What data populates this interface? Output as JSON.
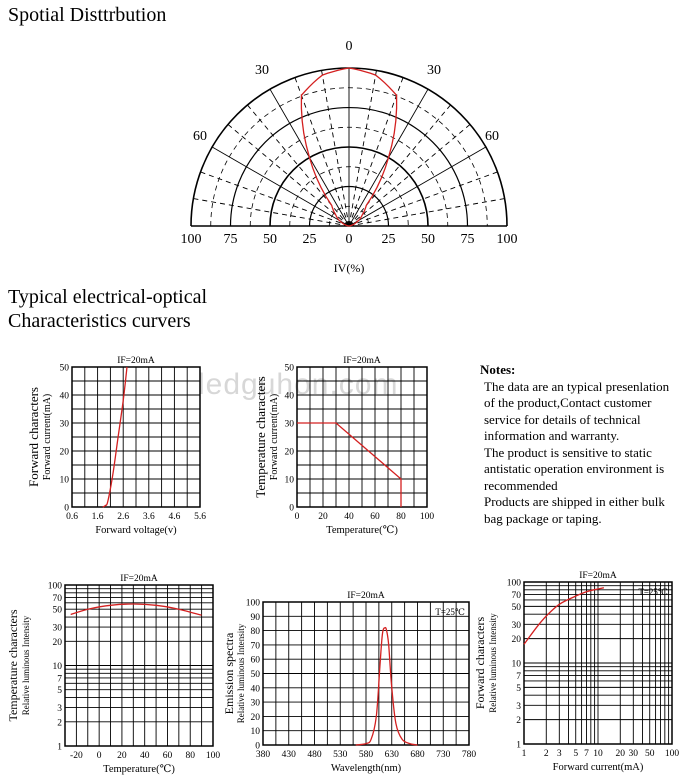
{
  "page": {
    "spatial_title": "Spotial Disttrbution",
    "electrical_title_line1": "Typical electrical-optical",
    "electrical_title_line2": "Characteristics curvers",
    "watermark": "ledguhon.com"
  },
  "notes": {
    "heading": "Notes:",
    "items": [
      "The data are an typical presenlation of the product,Contact customer service for details of technical information and warranty.",
      "The product is sensitive to static antistatic operation environment is recommended",
      "Products are shipped in either bulk bag package or taping."
    ]
  },
  "colors": {
    "curve": "#d42020",
    "grid": "#000000"
  },
  "chart_data": [
    {
      "id": "spatial",
      "type": "polar",
      "title": "Spotial Disttrbution",
      "angle_labels": [
        "0",
        "30",
        "30",
        "60",
        "60"
      ],
      "axis_labels": [
        "100",
        "75",
        "50",
        "25",
        "0",
        "25",
        "50",
        "75",
        "100"
      ],
      "xlabel": "IV(%)",
      "rings": [
        25,
        50,
        75,
        100
      ],
      "series": [
        {
          "name": "IV",
          "angles": [
            -90,
            -80,
            -70,
            -60,
            -50,
            -40,
            -30,
            -20,
            -10,
            0,
            10,
            20,
            30,
            40,
            50,
            60,
            70,
            80,
            90
          ],
          "values": [
            0,
            1,
            3,
            7,
            11,
            17,
            50,
            88,
            97,
            100,
            97,
            88,
            50,
            17,
            11,
            7,
            3,
            1,
            0
          ]
        }
      ]
    },
    {
      "id": "forward",
      "type": "line",
      "title": "IF=20mA",
      "ylabel": "Forward characters",
      "ylabel2": "Forward current(mA)",
      "xlabel": "Forward voltage(v)",
      "xlim": [
        0.6,
        5.6
      ],
      "ylim": [
        0,
        50
      ],
      "xticks": [
        "0.6",
        "1.6",
        "2.6",
        "3.6",
        "4.6",
        "5.6"
      ],
      "yticks": [
        "0",
        "10",
        "20",
        "30",
        "40",
        "50"
      ],
      "series": [
        {
          "name": "IF",
          "x": [
            1.8,
            1.9,
            2.0,
            2.2,
            2.4,
            2.6,
            2.75
          ],
          "y": [
            0,
            0.5,
            2,
            12,
            25,
            38,
            50
          ]
        }
      ]
    },
    {
      "id": "temp-current",
      "type": "line",
      "title": "IF=20mA",
      "ylabel": "Temperature characters",
      "ylabel2": "Forward current(mA)",
      "xlabel": "Temperature(℃)",
      "xlim": [
        0,
        100
      ],
      "ylim": [
        0,
        50
      ],
      "xticks": [
        "0",
        "20",
        "40",
        "60",
        "80",
        "100"
      ],
      "yticks": [
        "0",
        "10",
        "20",
        "30",
        "40",
        "50"
      ],
      "series": [
        {
          "name": "IF",
          "x": [
            0,
            30,
            80,
            80
          ],
          "y": [
            30,
            30,
            10,
            0
          ]
        }
      ]
    },
    {
      "id": "temp-intensity",
      "type": "line",
      "title": "IF=20mA",
      "ylabel": "Temperature characters",
      "ylabel2": "Relative luminous Intensity",
      "xlabel": "Temperature(℃)",
      "xlim": [
        -30,
        100
      ],
      "ylim": [
        1,
        100
      ],
      "yscale": "log",
      "xticks": [
        "-20",
        "0",
        "20",
        "40",
        "60",
        "80",
        "100"
      ],
      "yticks": [
        "1",
        "2",
        "3",
        "5",
        "7",
        "10",
        "20",
        "30",
        "50",
        "70",
        "100"
      ],
      "series": [
        {
          "name": "Iv",
          "x": [
            -25,
            -10,
            10,
            30,
            50,
            70,
            90
          ],
          "y": [
            43,
            50,
            56,
            58,
            56,
            50,
            42
          ]
        }
      ]
    },
    {
      "id": "emission",
      "type": "line",
      "title": "IF=20mA",
      "ylabel": "Emission spectra",
      "ylabel2": "Relative luminous Intensity",
      "xlabel": "Wavelength(nm)",
      "annotation": "T=25℃",
      "xlim": [
        380,
        780
      ],
      "ylim": [
        0,
        100
      ],
      "xticks": [
        "380",
        "430",
        "480",
        "530",
        "580",
        "630",
        "680",
        "730",
        "780"
      ],
      "yticks": [
        "0",
        "10",
        "20",
        "30",
        "40",
        "50",
        "60",
        "70",
        "80",
        "90",
        "100"
      ],
      "series": [
        {
          "name": "spectrum",
          "x": [
            560,
            580,
            590,
            600,
            607,
            612,
            617,
            620,
            624,
            630,
            638,
            650,
            665,
            680
          ],
          "y": [
            0,
            1,
            4,
            20,
            55,
            78,
            82,
            80,
            70,
            40,
            15,
            4,
            1,
            0
          ]
        }
      ]
    },
    {
      "id": "current-intensity",
      "type": "line",
      "title": "IF=20mA",
      "ylabel": "Forward characters",
      "ylabel2": "Relative luminous Intensity",
      "xlabel": "Forward current(mA)",
      "annotation": "T=25℃",
      "xlim": [
        1,
        100
      ],
      "ylim": [
        1,
        100
      ],
      "xscale": "log",
      "yscale": "log",
      "xticks": [
        "1",
        "2",
        "3",
        "5",
        "7",
        "10",
        "20",
        "30",
        "50",
        "100"
      ],
      "yticks": [
        "1",
        "2",
        "3",
        "5",
        "7",
        "10",
        "20",
        "30",
        "50",
        "70",
        "100"
      ],
      "series": [
        {
          "name": "Iv",
          "x": [
            1,
            1.5,
            2,
            3,
            5,
            7,
            10,
            12
          ],
          "y": [
            17,
            28,
            38,
            53,
            67,
            76,
            82,
            85
          ]
        }
      ]
    }
  ]
}
